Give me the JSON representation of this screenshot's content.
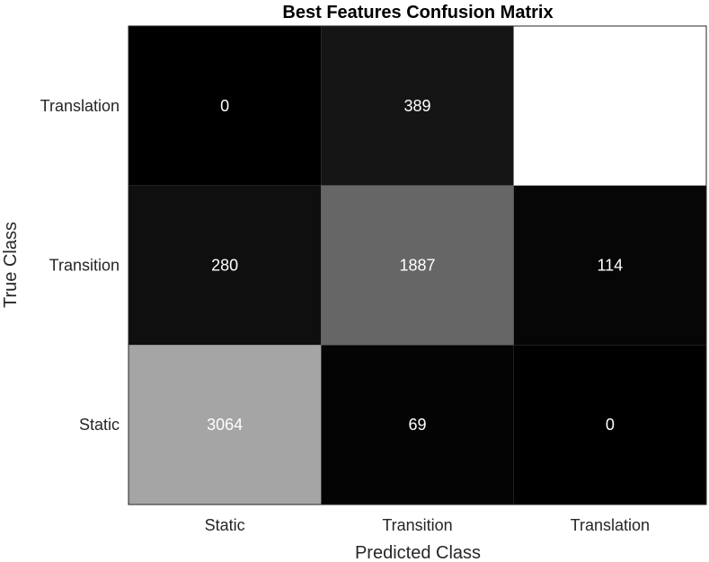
{
  "chart_data": {
    "type": "heatmap",
    "title": "Best Features Confusion Matrix",
    "xlabel": "Predicted Class",
    "ylabel": "True Class",
    "x_categories": [
      "Static",
      "Transition",
      "Translation"
    ],
    "y_categories": [
      "Translation",
      "Transition",
      "Static"
    ],
    "values": [
      [
        0,
        389,
        4727
      ],
      [
        280,
        1887,
        114
      ],
      [
        3064,
        69,
        0
      ]
    ],
    "colormap": "gray",
    "cell_text_color": "#ffffff",
    "grid": false
  }
}
